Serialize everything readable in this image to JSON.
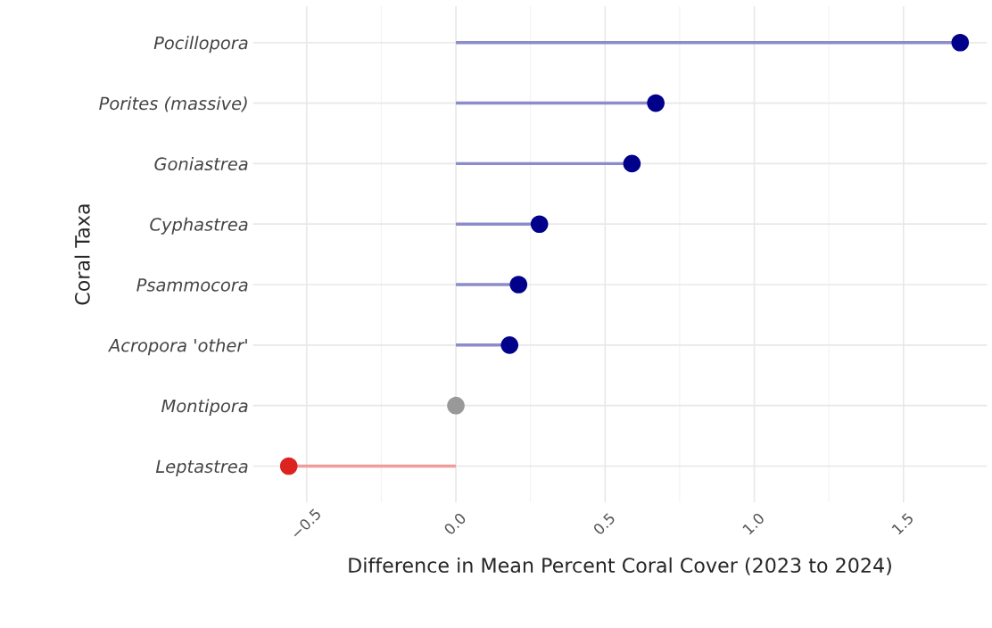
{
  "chart_data": {
    "type": "lollipop",
    "xlabel": "Difference in Mean Percent Coral Cover (2023 to 2024)",
    "ylabel": "Coral Taxa",
    "categories": [
      "Pocillopora",
      "Porites (massive)",
      "Goniastrea",
      "Cyphastrea",
      "Psammocora",
      "Acropora 'other'",
      "Montipora",
      "Leptastrea"
    ],
    "values": [
      1.69,
      0.67,
      0.59,
      0.28,
      0.21,
      0.18,
      0.0,
      -0.56
    ],
    "colors": [
      "#00008b",
      "#00008b",
      "#00008b",
      "#00008b",
      "#00008b",
      "#00008b",
      "#999999",
      "#dd2222"
    ],
    "orientation": "horizontal",
    "xlim": [
      -0.68,
      1.78
    ],
    "xticks": [
      {
        "value": -0.5,
        "label": "−0.5"
      },
      {
        "value": 0,
        "label": "0.0"
      },
      0.5,
      {
        "value": 1.0,
        "label": "1.0"
      },
      1.5
    ],
    "grid": true
  }
}
